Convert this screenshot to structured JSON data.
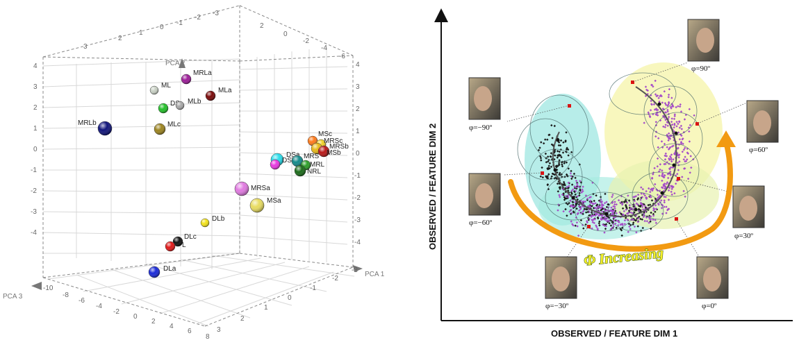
{
  "pca_plot": {
    "axes": {
      "x": "PCA 1",
      "y": "PCA 2",
      "z": "PCA 3"
    },
    "ticks": {
      "right": [
        "4",
        "3",
        "2",
        "1",
        "0",
        "-1",
        "-2",
        "-3",
        "-4"
      ],
      "bottom_front": [
        "-10",
        "-8",
        "-6",
        "-4",
        "-2",
        "0",
        "2",
        "4",
        "6",
        "8"
      ],
      "bottom_right": [
        "3",
        "2",
        "1",
        "0",
        "-1",
        "-2",
        "-3"
      ],
      "top_back": [
        "3",
        "2",
        "1",
        "0",
        "-1",
        "-2",
        "-3"
      ],
      "top_right": [
        "2",
        "0",
        "-2",
        "-4",
        "-6"
      ],
      "left": [
        "4",
        "3",
        "2",
        "1",
        "0",
        "-1",
        "-2",
        "-3",
        "-4"
      ]
    },
    "points": [
      {
        "label": "MRLa",
        "color": "#9c1c98"
      },
      {
        "label": "MLa",
        "color": "#7a0a0a"
      },
      {
        "label": "ML",
        "color": "#c8d0c4"
      },
      {
        "label": "DS",
        "color": "#22c028"
      },
      {
        "label": "MLb",
        "color": "#a8a8a8"
      },
      {
        "label": "MRLb",
        "color": "#10147a"
      },
      {
        "label": "MLc",
        "color": "#9c8420"
      },
      {
        "label": "MSc",
        "color": "#ff7a1a"
      },
      {
        "label": "MRSc",
        "color": "#f0d22a"
      },
      {
        "label": "MRSb",
        "color": "#e8b818"
      },
      {
        "label": "MSb",
        "color": "#b81818"
      },
      {
        "label": "DSa",
        "color": "#28dcea"
      },
      {
        "label": "DSb",
        "color": "#e838e0"
      },
      {
        "label": "MRS",
        "color": "#138a8a"
      },
      {
        "label": "MRL",
        "color": "#2c9e28"
      },
      {
        "label": "NRL",
        "color": "#1a6a18"
      },
      {
        "label": "MRSa",
        "color": "#e07ae0"
      },
      {
        "label": "MSa",
        "color": "#e8dc60"
      },
      {
        "label": "DLb",
        "color": "#f2e21a"
      },
      {
        "label": "DLc",
        "color": "#111111"
      },
      {
        "label": "L",
        "color": "#e01818"
      },
      {
        "label": "DLa",
        "color": "#1a2ad8"
      }
    ]
  },
  "manifold": {
    "xlabel": "OBSERVED / FEATURE DIM 1",
    "ylabel": "OBSERVED / FEATURE DIM 2",
    "increasing_label": "Φ Increasing",
    "faces": [
      {
        "angle": "φ=90º",
        "name": "face-90"
      },
      {
        "angle": "φ=−90º",
        "name": "face-minus90"
      },
      {
        "angle": "φ=60º",
        "name": "face-60"
      },
      {
        "angle": "φ=−60º",
        "name": "face-minus60"
      },
      {
        "angle": "φ=30º",
        "name": "face-30"
      },
      {
        "angle": "φ=−30º",
        "name": "face-minus30"
      },
      {
        "angle": "φ=0º",
        "name": "face-0"
      }
    ],
    "colors": {
      "black_cluster": "#1a1a1a",
      "purple_cluster": "#a64ec8",
      "arrow": "#f29a12",
      "cyan_region": "#9fe7e2",
      "yellow_region": "#f6f4a8"
    }
  }
}
